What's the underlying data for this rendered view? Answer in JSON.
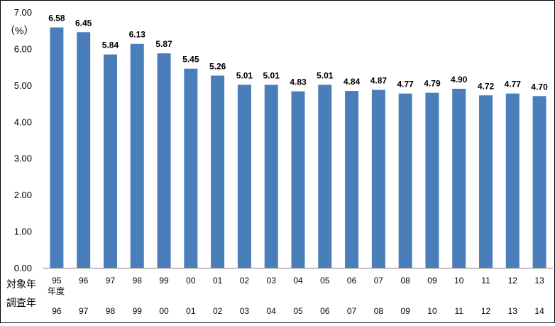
{
  "chart_data": {
    "type": "bar",
    "unit_label": "（%）",
    "categories": [
      "95",
      "96",
      "97",
      "98",
      "99",
      "00",
      "01",
      "02",
      "03",
      "04",
      "05",
      "06",
      "07",
      "08",
      "09",
      "10",
      "11",
      "12",
      "13"
    ],
    "survey_years": [
      "96",
      "97",
      "98",
      "99",
      "00",
      "01",
      "02",
      "03",
      "04",
      "05",
      "06",
      "07",
      "08",
      "09",
      "10",
      "11",
      "12",
      "13",
      "14"
    ],
    "values": [
      6.58,
      6.45,
      5.84,
      6.13,
      5.87,
      5.45,
      5.26,
      5.01,
      5.01,
      4.83,
      5.01,
      4.84,
      4.87,
      4.77,
      4.79,
      4.9,
      4.72,
      4.77,
      4.7
    ],
    "value_labels": [
      "6.58",
      "6.45",
      "5.84",
      "6.13",
      "5.87",
      "5.45",
      "5.26",
      "5.01",
      "5.01",
      "4.83",
      "5.01",
      "4.84",
      "4.87",
      "4.77",
      "4.79",
      "4.90",
      "4.72",
      "4.77",
      "4.70"
    ],
    "ylim": [
      0,
      7
    ],
    "yticks": [
      "0.00",
      "1.00",
      "2.00",
      "3.00",
      "4.00",
      "5.00",
      "6.00",
      "7.00"
    ],
    "row_labels": {
      "target_year": "対象年",
      "fiscal_year": "年度",
      "survey_year": "調査年"
    },
    "grid": false,
    "legend": "none",
    "bar_color": "#4a7ebb"
  }
}
